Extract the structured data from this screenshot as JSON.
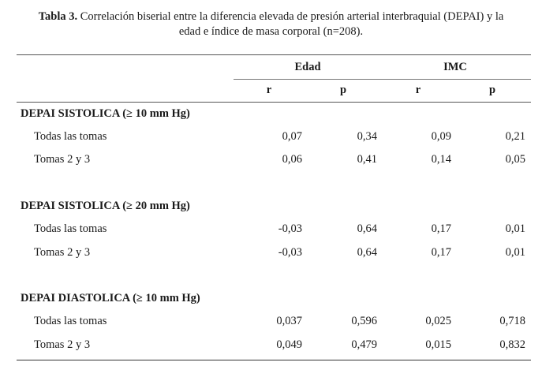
{
  "caption": {
    "label": "Tabla 3.",
    "line1": "Correlación biserial entre la diferencia elevada de presión arterial interbraquial (DEPAI) y la",
    "line2": "edad e índice de masa corporal (n=208)."
  },
  "headers": {
    "edad": "Edad",
    "imc": "IMC",
    "r1": "r",
    "p1": "p",
    "r2": "r",
    "p2": "p"
  },
  "groups": [
    {
      "title": "DEPAI SISTOLICA (≥ 10 mm Hg)",
      "rows": [
        {
          "label": "Todas las tomas",
          "edad_r": "0,07",
          "edad_p": "0,34",
          "imc_r": "0,09",
          "imc_p": "0,21"
        },
        {
          "label": "Tomas 2 y 3",
          "edad_r": "0,06",
          "edad_p": "0,41",
          "imc_r": "0,14",
          "imc_p": "0,05"
        }
      ]
    },
    {
      "title": "DEPAI SISTOLICA (≥ 20 mm Hg)",
      "rows": [
        {
          "label": "Todas las tomas",
          "edad_r": "-0,03",
          "edad_p": "0,64",
          "imc_r": "0,17",
          "imc_p": "0,01"
        },
        {
          "label": "Tomas 2 y 3",
          "edad_r": "-0,03",
          "edad_p": "0,64",
          "imc_r": "0,17",
          "imc_p": "0,01"
        }
      ]
    },
    {
      "title": "DEPAI DIASTOLICA (≥ 10 mm Hg)",
      "rows": [
        {
          "label": "Todas las tomas",
          "edad_r": "0,037",
          "edad_p": "0,596",
          "imc_r": "0,025",
          "imc_p": "0,718"
        },
        {
          "label": "Tomas 2 y 3",
          "edad_r": "0,049",
          "edad_p": "0,479",
          "imc_r": "0,015",
          "imc_p": "0,832"
        }
      ]
    }
  ]
}
